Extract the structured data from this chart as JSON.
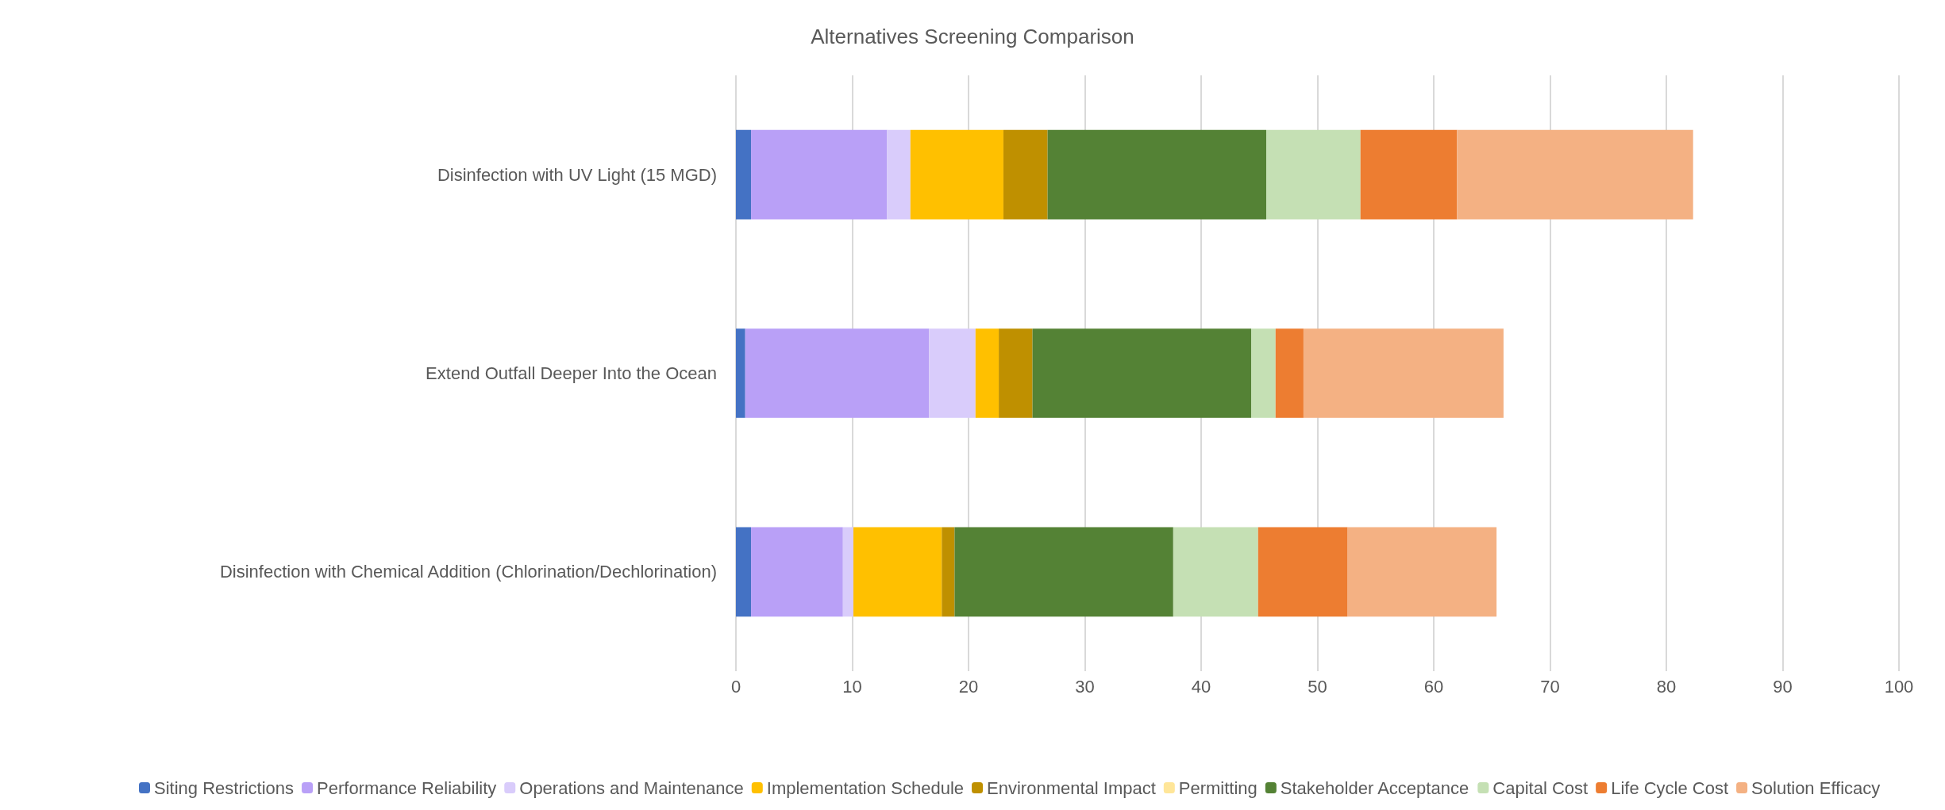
{
  "chart_data": {
    "type": "bar",
    "title": "Alternatives Screening Comparison",
    "orientation": "horizontal",
    "stacked": true,
    "categories": [
      "Disinfection with UV Light (15 MGD)",
      "Extend Outfall Deeper Into the Ocean",
      "Disinfection with Chemical Addition (Chlorination/Dechlorination)"
    ],
    "series": [
      {
        "name": "Siting Restrictions",
        "color": "#4472c4",
        "values": [
          1.3,
          0.8,
          1.3
        ]
      },
      {
        "name": "Performance Reliability",
        "color": "#b9a0f7",
        "values": [
          11.7,
          15.8,
          7.9
        ]
      },
      {
        "name": "Operations and Maintenance",
        "color": "#d9ccfb",
        "values": [
          2.0,
          4.0,
          0.9
        ]
      },
      {
        "name": "Implementation Schedule",
        "color": "#ffc000",
        "values": [
          8.0,
          2.0,
          7.6
        ]
      },
      {
        "name": "Environmental Impact",
        "color": "#bf9000",
        "values": [
          3.8,
          2.9,
          1.1
        ]
      },
      {
        "name": "Permitting",
        "color": "#ffe699",
        "values": [
          0,
          0,
          0
        ]
      },
      {
        "name": "Stakeholder Acceptance",
        "color": "#548235",
        "values": [
          18.8,
          18.8,
          18.8
        ]
      },
      {
        "name": "Capital Cost",
        "color": "#c5e0b4",
        "values": [
          8.1,
          2.1,
          7.3
        ]
      },
      {
        "name": "Life Cycle Cost",
        "color": "#ed7d31",
        "values": [
          8.3,
          2.4,
          7.7
        ]
      },
      {
        "name": "Solution Efficacy",
        "color": "#f4b183",
        "values": [
          20.3,
          17.2,
          12.8
        ]
      }
    ],
    "xlim": [
      0,
      100
    ],
    "xticks": [
      0,
      10,
      20,
      30,
      40,
      50,
      60,
      70,
      80,
      90,
      100
    ],
    "grid": "x",
    "legend": "bottom"
  }
}
